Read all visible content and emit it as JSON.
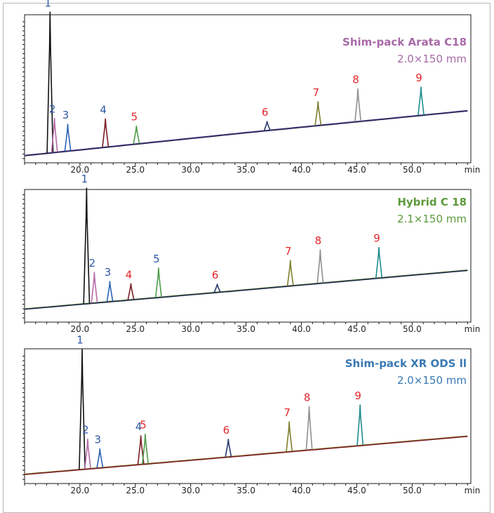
{
  "colors": {
    "blue_label": "#2e58a6",
    "red_label": "#e2262b",
    "peak_colors": [
      "#111111",
      "#b46aa9",
      "#2a62b5",
      "#7b1d24",
      "#4c9b47",
      "#273a6e",
      "#7f7d2b",
      "#8f8f8f",
      "#1f8b8b"
    ]
  },
  "chart_data": [
    {
      "type": "line",
      "title": "Shim-pack Arata C18",
      "subtitle": "2.0×150 mm",
      "title_color": "#a76aa8",
      "xlabel": "min",
      "xlim": [
        15.0,
        55.3
      ],
      "x_ticks": [
        20.0,
        25.0,
        30.0,
        35.0,
        40.0,
        45.0,
        50.0
      ],
      "x_tick_labels": [
        "20.0",
        "25.0",
        "30.0",
        "35.0",
        "40.0",
        "45.0",
        "50.0"
      ],
      "ylim": [
        0,
        100
      ],
      "baseline": [
        [
          15.0,
          5.0
        ],
        [
          35.0,
          20.5
        ],
        [
          55.3,
          35.5
        ]
      ],
      "trace_colors": [
        "#4b3f8c",
        "#2b2b5a"
      ],
      "peaks": [
        {
          "label": "1",
          "time": 17.3,
          "height": 95,
          "label_color": "blue"
        },
        {
          "label": "2",
          "time": 17.7,
          "height": 23,
          "label_color": "blue"
        },
        {
          "label": "3",
          "time": 18.9,
          "height": 18,
          "label_color": "blue"
        },
        {
          "label": "4",
          "time": 22.3,
          "height": 19,
          "label_color": "blue"
        },
        {
          "label": "5",
          "time": 25.1,
          "height": 12,
          "label_color": "red"
        },
        {
          "label": "6",
          "time": 36.9,
          "height": 6,
          "label_color": "red"
        },
        {
          "label": "7",
          "time": 41.5,
          "height": 16,
          "label_color": "red"
        },
        {
          "label": "8",
          "time": 45.1,
          "height": 22,
          "label_color": "red"
        },
        {
          "label": "9",
          "time": 50.8,
          "height": 19,
          "label_color": "red"
        }
      ]
    },
    {
      "type": "line",
      "title": "Hybrid C 18",
      "subtitle": "2.1×150 mm",
      "title_color": "#5c9a3c",
      "xlabel": "min",
      "xlim": [
        15.0,
        55.3
      ],
      "x_ticks": [
        20.0,
        25.0,
        30.0,
        35.0,
        40.0,
        45.0,
        50.0
      ],
      "x_tick_labels": [
        "20.0",
        "25.0",
        "30.0",
        "35.0",
        "40.0",
        "45.0",
        "50.0"
      ],
      "ylim": [
        0,
        100
      ],
      "baseline": [
        [
          15.0,
          10.0
        ],
        [
          35.0,
          24.5
        ],
        [
          55.3,
          39.5
        ]
      ],
      "trace_colors": [
        "#6f8f3f",
        "#1e2a4a"
      ],
      "peaks": [
        {
          "label": "1",
          "time": 20.6,
          "height": 87,
          "label_color": "blue"
        },
        {
          "label": "2",
          "time": 21.3,
          "height": 23,
          "label_color": "blue"
        },
        {
          "label": "3",
          "time": 22.7,
          "height": 15,
          "label_color": "blue"
        },
        {
          "label": "4",
          "time": 24.6,
          "height": 12,
          "label_color": "red"
        },
        {
          "label": "5",
          "time": 27.1,
          "height": 22,
          "label_color": "blue"
        },
        {
          "label": "6",
          "time": 32.4,
          "height": 6,
          "label_color": "red"
        },
        {
          "label": "7",
          "time": 39.0,
          "height": 19,
          "label_color": "red"
        },
        {
          "label": "8",
          "time": 41.7,
          "height": 25,
          "label_color": "red"
        },
        {
          "label": "9",
          "time": 47.0,
          "height": 23,
          "label_color": "red"
        }
      ]
    },
    {
      "type": "line",
      "title": "Shim-pack XR ODS ll",
      "subtitle": "2.0×150 mm",
      "title_color": "#3a79b3",
      "xlabel": "min",
      "xlim": [
        15.0,
        55.3
      ],
      "x_ticks": [
        20.0,
        25.0,
        30.0,
        35.0,
        40.0,
        45.0,
        50.0
      ],
      "x_tick_labels": [
        "20.0",
        "25.0",
        "30.0",
        "35.0",
        "40.0",
        "45.0",
        "50.0"
      ],
      "ylim": [
        0,
        100
      ],
      "baseline": [
        [
          15.0,
          7.0
        ],
        [
          35.0,
          21.0
        ],
        [
          55.3,
          35.5
        ]
      ],
      "trace_colors": [
        "#8a9a3a",
        "#7b1d24"
      ],
      "peaks": [
        {
          "label": "1",
          "time": 20.2,
          "height": 89,
          "label_color": "blue"
        },
        {
          "label": "2",
          "time": 20.7,
          "height": 22,
          "label_color": "blue"
        },
        {
          "label": "3",
          "time": 21.8,
          "height": 14,
          "label_color": "blue"
        },
        {
          "label": "4",
          "time": 25.5,
          "height": 21,
          "label_color": "blue"
        },
        {
          "label": "5",
          "time": 25.9,
          "height": 22,
          "label_color": "red"
        },
        {
          "label": "6",
          "time": 33.4,
          "height": 13,
          "label_color": "red"
        },
        {
          "label": "7",
          "time": 38.9,
          "height": 22,
          "label_color": "red"
        },
        {
          "label": "8",
          "time": 40.7,
          "height": 32,
          "label_color": "red"
        },
        {
          "label": "9",
          "time": 45.3,
          "height": 30,
          "label_color": "red"
        }
      ]
    }
  ]
}
